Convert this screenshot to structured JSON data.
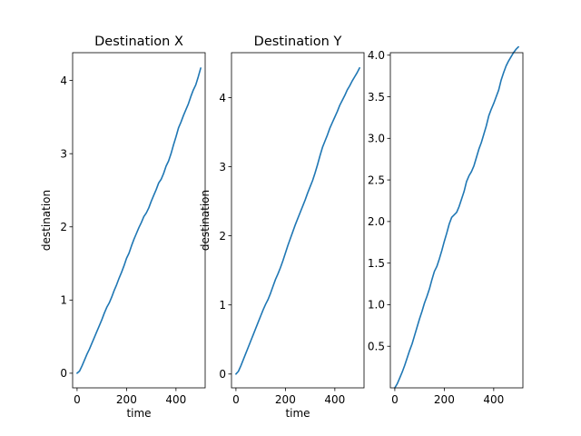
{
  "chart_data": [
    {
      "type": "line",
      "title": "Destination X",
      "xlabel": "time",
      "ylabel": "destination",
      "xlim": [
        -18,
        518
      ],
      "ylim": [
        -0.2,
        4.38
      ],
      "xticks": [
        0,
        200,
        400
      ],
      "yticks": [
        0,
        1,
        2,
        3,
        4
      ],
      "ytick_labels": [
        "0",
        "1",
        "2",
        "3",
        "4"
      ],
      "grid": false,
      "series": [
        {
          "color": "#1f77b4",
          "x": [
            0,
            10,
            20,
            30,
            40,
            50,
            60,
            70,
            80,
            90,
            100,
            110,
            120,
            130,
            140,
            150,
            160,
            170,
            180,
            190,
            200,
            210,
            220,
            230,
            240,
            250,
            260,
            270,
            280,
            290,
            300,
            310,
            320,
            330,
            340,
            350,
            360,
            370,
            380,
            390,
            400,
            410,
            420,
            430,
            440,
            450,
            460,
            470,
            480,
            490,
            500
          ],
          "y": [
            0.0,
            0.03,
            0.1,
            0.18,
            0.26,
            0.33,
            0.41,
            0.49,
            0.57,
            0.65,
            0.73,
            0.82,
            0.9,
            0.96,
            1.04,
            1.13,
            1.21,
            1.3,
            1.38,
            1.47,
            1.57,
            1.64,
            1.74,
            1.83,
            1.91,
            1.99,
            2.06,
            2.14,
            2.19,
            2.26,
            2.35,
            2.43,
            2.51,
            2.6,
            2.65,
            2.73,
            2.83,
            2.9,
            3.0,
            3.12,
            3.23,
            3.35,
            3.43,
            3.52,
            3.6,
            3.68,
            3.78,
            3.87,
            3.94,
            4.05,
            4.17
          ]
        }
      ]
    },
    {
      "type": "line",
      "title": "Destination Y",
      "xlabel": "time",
      "ylabel": "destination",
      "xlim": [
        -18,
        518
      ],
      "ylim": [
        -0.2,
        4.65
      ],
      "xticks": [
        0,
        200,
        400
      ],
      "yticks": [
        0,
        1,
        2,
        3,
        4
      ],
      "ytick_labels": [
        "0",
        "1",
        "2",
        "3",
        "4"
      ],
      "grid": false,
      "series": [
        {
          "color": "#1f77b4",
          "x": [
            0,
            10,
            20,
            30,
            40,
            50,
            60,
            70,
            80,
            90,
            100,
            110,
            120,
            130,
            140,
            150,
            160,
            170,
            180,
            190,
            200,
            210,
            220,
            230,
            240,
            250,
            260,
            270,
            280,
            290,
            300,
            310,
            320,
            330,
            340,
            350,
            360,
            370,
            380,
            390,
            400,
            410,
            420,
            430,
            440,
            450,
            460,
            470,
            480,
            490,
            500
          ],
          "y": [
            0.0,
            0.04,
            0.12,
            0.21,
            0.3,
            0.39,
            0.48,
            0.57,
            0.66,
            0.75,
            0.84,
            0.93,
            1.01,
            1.08,
            1.17,
            1.27,
            1.37,
            1.45,
            1.54,
            1.64,
            1.75,
            1.86,
            1.96,
            2.06,
            2.16,
            2.25,
            2.34,
            2.43,
            2.52,
            2.62,
            2.71,
            2.8,
            2.91,
            3.03,
            3.16,
            3.28,
            3.37,
            3.46,
            3.56,
            3.64,
            3.72,
            3.8,
            3.89,
            3.96,
            4.03,
            4.11,
            4.17,
            4.24,
            4.3,
            4.36,
            4.43
          ]
        }
      ]
    },
    {
      "type": "line",
      "title": "",
      "xlabel": "",
      "ylabel": "",
      "xlim": [
        -18,
        518
      ],
      "ylim": [
        0.0,
        4.03
      ],
      "xticks": [
        0,
        200,
        400
      ],
      "yticks": [
        0.5,
        1.0,
        1.5,
        2.0,
        2.5,
        3.0,
        3.5,
        4.0
      ],
      "ytick_labels": [
        "0.5",
        "1.0",
        "1.5",
        "2.0",
        "2.5",
        "3.0",
        "3.5",
        "4.0"
      ],
      "grid": false,
      "series": [
        {
          "color": "#1f77b4",
          "x": [
            0,
            10,
            20,
            30,
            40,
            50,
            60,
            70,
            80,
            90,
            100,
            110,
            120,
            130,
            140,
            150,
            160,
            170,
            180,
            190,
            200,
            210,
            220,
            230,
            240,
            250,
            260,
            270,
            280,
            290,
            300,
            310,
            320,
            330,
            340,
            350,
            360,
            370,
            380,
            390,
            400,
            410,
            420,
            430,
            440,
            450,
            460,
            470,
            480,
            490,
            500
          ],
          "y": [
            0.0,
            0.05,
            0.12,
            0.19,
            0.27,
            0.36,
            0.45,
            0.53,
            0.63,
            0.73,
            0.83,
            0.92,
            1.02,
            1.1,
            1.19,
            1.3,
            1.4,
            1.46,
            1.55,
            1.65,
            1.76,
            1.86,
            1.97,
            2.05,
            2.08,
            2.11,
            2.18,
            2.27,
            2.36,
            2.48,
            2.55,
            2.6,
            2.67,
            2.77,
            2.87,
            2.95,
            3.05,
            3.15,
            3.27,
            3.35,
            3.42,
            3.5,
            3.58,
            3.7,
            3.79,
            3.87,
            3.93,
            3.98,
            4.03,
            4.07,
            4.1
          ]
        }
      ]
    }
  ]
}
